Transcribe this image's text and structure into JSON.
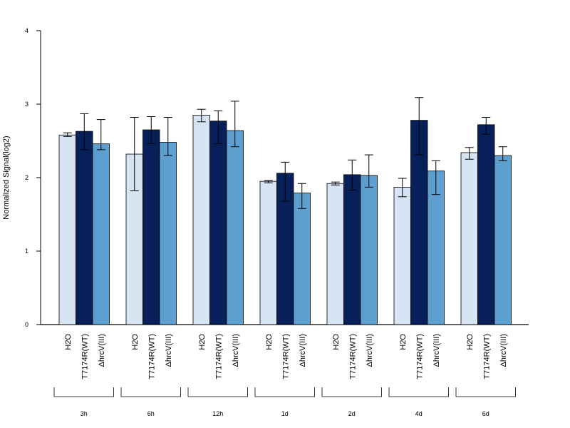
{
  "chart_data": {
    "type": "bar",
    "ylabel": "Normalized Signal(log2)",
    "ylim": [
      0,
      4
    ],
    "yticks": [
      "0",
      "1",
      "2",
      "3",
      "4"
    ],
    "bar_labels": [
      "H2O",
      "T7174R(WT)",
      "ΔhrcV(III)"
    ],
    "groups": [
      "3h",
      "6h",
      "12h",
      "1d",
      "2d",
      "4d",
      "6d"
    ],
    "series": [
      {
        "values": [
          2.58,
          2.32,
          2.85,
          1.95,
          1.92,
          1.87,
          2.34
        ],
        "err_low": [
          2.56,
          1.82,
          2.76,
          1.93,
          1.9,
          1.74,
          2.25
        ],
        "err_high": [
          2.61,
          2.82,
          2.93,
          1.96,
          1.94,
          1.99,
          2.41
        ],
        "color": "#d6e4f3"
      },
      {
        "values": [
          2.63,
          2.65,
          2.77,
          2.06,
          2.04,
          2.78,
          2.72
        ],
        "err_low": [
          2.38,
          2.46,
          2.46,
          1.68,
          1.83,
          2.31,
          2.59
        ],
        "err_high": [
          2.87,
          2.83,
          2.91,
          2.21,
          2.24,
          3.09,
          2.82
        ],
        "color": "#08205a"
      },
      {
        "values": [
          2.46,
          2.48,
          2.64,
          1.79,
          2.03,
          2.09,
          2.3
        ],
        "err_low": [
          2.38,
          2.3,
          2.42,
          1.58,
          1.87,
          1.77,
          2.23
        ],
        "err_high": [
          2.79,
          2.82,
          3.04,
          1.92,
          2.31,
          2.23,
          2.42
        ],
        "color": "#5da0cf"
      }
    ]
  }
}
